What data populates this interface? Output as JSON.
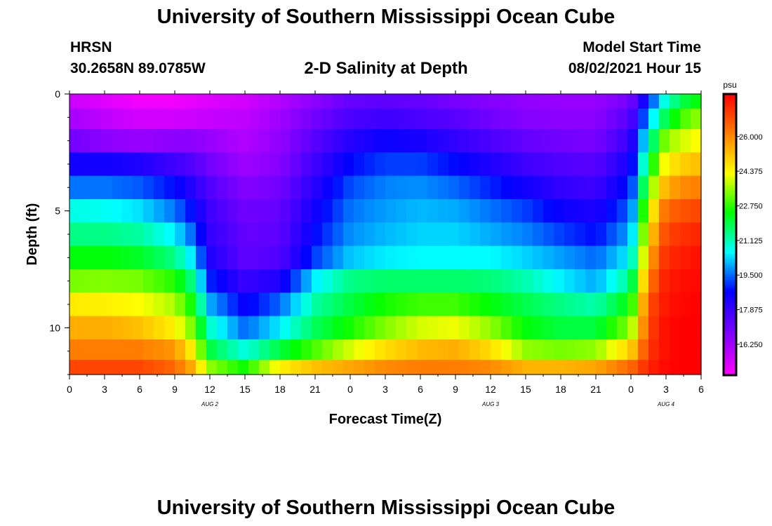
{
  "header": {
    "title": "University of Southern Mississippi Ocean Cube",
    "station": "HRSN",
    "coordinates": "30.2658N  89.0785W",
    "subtitle": "2-D Salinity at Depth",
    "model_start_label": "Model Start Time",
    "model_start_value": "08/02/2021 Hour 15"
  },
  "footer": {
    "title": "University of Southern Mississippi Ocean Cube"
  },
  "chart_data": {
    "type": "heatmap",
    "title": "2-D Salinity at Depth",
    "xlabel": "Forecast Time(Z)",
    "ylabel": "Depth (ft)",
    "xlim": [
      0,
      54
    ],
    "ylim": [
      0,
      12
    ],
    "x_tick_values": [
      0,
      3,
      6,
      9,
      12,
      15,
      18,
      21,
      24,
      27,
      30,
      33,
      36,
      39,
      42,
      45,
      48,
      51,
      54
    ],
    "x_tick_labels": [
      "0",
      "3",
      "6",
      "9",
      "12",
      "15",
      "18",
      "21",
      "0",
      "3",
      "6",
      "9",
      "12",
      "15",
      "18",
      "21",
      "0",
      "3",
      "6"
    ],
    "y_tick_values": [
      0,
      5,
      10
    ],
    "y_tick_labels": [
      "0",
      "5",
      "10"
    ],
    "date_labels": [
      {
        "x": 12,
        "text": "AUG 2"
      },
      {
        "x": 36,
        "text": "AUG 3"
      },
      {
        "x": 51,
        "text": "AUG 4"
      }
    ],
    "depth_levels_ft": [
      0.25,
      1,
      2,
      3,
      4,
      5,
      6,
      7,
      8,
      9,
      10,
      11,
      11.75
    ],
    "colorbar": {
      "unit": "psu",
      "min": 14.8,
      "max": 28.0,
      "tick_values": [
        16.25,
        17.875,
        19.5,
        21.125,
        22.75,
        24.375,
        26.0
      ],
      "tick_labels": [
        "16.250",
        "17.875",
        "19.500",
        "21.125",
        "22.750",
        "24.375",
        "26.000"
      ]
    },
    "control_points": {
      "times": [
        0,
        3,
        6,
        9,
        10.5,
        12,
        15,
        18,
        21,
        24,
        27,
        30,
        33,
        36,
        39,
        42,
        45,
        48,
        49.5,
        51,
        52.5,
        54
      ],
      "rows": [
        [
          15.6,
          15.3,
          15.0,
          15.0,
          15.2,
          15.3,
          15.5,
          16.0,
          16.6,
          17.2,
          17.3,
          17.2,
          16.9,
          16.7,
          16.5,
          16.4,
          16.4,
          17.0,
          19.0,
          21.0,
          22.0,
          22.5
        ],
        [
          16.2,
          15.8,
          15.5,
          15.5,
          15.6,
          15.7,
          15.8,
          16.3,
          17.0,
          17.6,
          17.8,
          17.6,
          17.4,
          17.0,
          16.7,
          16.6,
          16.6,
          17.5,
          20.0,
          22.0,
          23.0,
          23.6
        ],
        [
          17.0,
          16.6,
          16.4,
          16.6,
          16.6,
          16.4,
          16.0,
          16.5,
          17.4,
          18.2,
          18.6,
          18.4,
          18.0,
          17.6,
          17.2,
          17.0,
          16.9,
          18.0,
          21.0,
          23.5,
          24.0,
          24.4
        ],
        [
          18.5,
          18.5,
          18.3,
          17.8,
          17.5,
          17.0,
          16.3,
          16.7,
          17.8,
          18.8,
          19.2,
          19.2,
          18.8,
          18.3,
          17.8,
          17.5,
          17.4,
          18.5,
          22.0,
          24.5,
          25.0,
          25.3
        ],
        [
          19.6,
          19.6,
          19.4,
          18.8,
          18.2,
          17.5,
          16.7,
          17.0,
          18.2,
          19.3,
          19.7,
          19.8,
          19.5,
          19.0,
          18.5,
          18.0,
          17.8,
          19.0,
          23.0,
          25.5,
          26.0,
          26.2
        ],
        [
          20.8,
          20.7,
          20.4,
          19.6,
          18.8,
          17.8,
          17.0,
          17.2,
          18.5,
          19.6,
          19.9,
          20.1,
          20.0,
          19.6,
          19.2,
          18.6,
          18.3,
          19.5,
          24.0,
          26.5,
          26.8,
          27.0
        ],
        [
          21.5,
          21.5,
          21.3,
          20.5,
          19.5,
          18.0,
          17.2,
          17.3,
          18.8,
          19.8,
          20.1,
          20.3,
          20.3,
          20.0,
          19.7,
          19.2,
          18.8,
          20.0,
          24.8,
          27.0,
          27.3,
          27.5
        ],
        [
          22.4,
          22.4,
          22.2,
          21.5,
          20.4,
          18.3,
          17.3,
          17.5,
          19.2,
          20.2,
          20.5,
          20.6,
          20.6,
          20.6,
          20.3,
          19.9,
          19.5,
          20.6,
          25.5,
          27.4,
          27.6,
          27.8
        ],
        [
          23.3,
          23.4,
          23.3,
          22.7,
          21.5,
          19.0,
          17.9,
          18.3,
          20.5,
          21.5,
          21.7,
          21.7,
          21.7,
          21.6,
          21.2,
          20.5,
          20.0,
          21.5,
          26.2,
          27.6,
          27.8,
          27.9
        ],
        [
          24.6,
          24.5,
          24.3,
          23.7,
          22.5,
          20.0,
          18.6,
          19.5,
          21.3,
          22.0,
          22.6,
          22.9,
          22.9,
          22.4,
          21.9,
          21.5,
          21.2,
          22.5,
          26.8,
          27.7,
          27.9,
          28.0
        ],
        [
          25.5,
          25.5,
          25.2,
          24.5,
          23.3,
          21.0,
          19.5,
          20.5,
          21.8,
          22.6,
          23.4,
          24.0,
          24.2,
          23.5,
          22.4,
          22.0,
          22.0,
          23.5,
          27.0,
          27.8,
          28.0,
          28.0
        ],
        [
          26.2,
          26.2,
          26.2,
          25.8,
          24.5,
          22.0,
          20.8,
          22.0,
          23.0,
          24.0,
          24.8,
          25.3,
          25.5,
          24.8,
          23.5,
          23.3,
          23.5,
          25.0,
          27.2,
          27.8,
          28.0,
          28.0
        ],
        [
          27.0,
          27.0,
          27.0,
          26.5,
          25.5,
          23.5,
          22.5,
          24.5,
          25.2,
          25.6,
          26.0,
          26.2,
          26.2,
          26.0,
          25.4,
          25.4,
          25.6,
          26.5,
          27.5,
          27.9,
          28.0,
          28.0
        ]
      ]
    }
  }
}
